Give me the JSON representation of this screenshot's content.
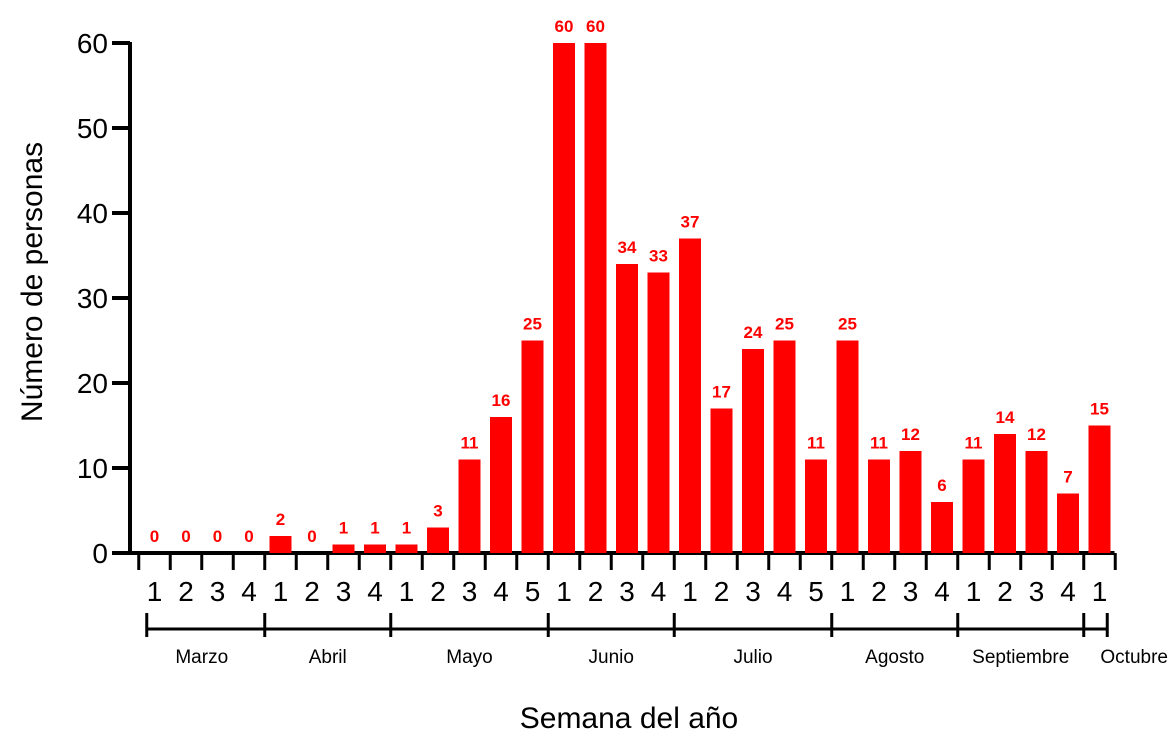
{
  "chart_data": {
    "type": "bar",
    "xlabel": "Semana del año",
    "ylabel": "Número de personas",
    "ylim": [
      0,
      60
    ],
    "yticks": [
      0,
      10,
      20,
      30,
      40,
      50,
      60
    ],
    "bar_color": "#ff0000",
    "label_color": "#ff0000",
    "axis_color": "#000000",
    "categories": [
      "1",
      "2",
      "3",
      "4",
      "1",
      "2",
      "3",
      "4",
      "1",
      "2",
      "3",
      "4",
      "5",
      "1",
      "2",
      "3",
      "4",
      "1",
      "2",
      "3",
      "4",
      "5",
      "1",
      "2",
      "3",
      "4",
      "1",
      "2",
      "3",
      "4",
      "1"
    ],
    "values": [
      0,
      0,
      0,
      0,
      2,
      0,
      1,
      1,
      1,
      3,
      11,
      16,
      25,
      60,
      60,
      34,
      33,
      37,
      17,
      24,
      25,
      11,
      25,
      11,
      12,
      6,
      11,
      14,
      12,
      7,
      15
    ],
    "groups": [
      {
        "name": "Marzo",
        "count": 4
      },
      {
        "name": "Abril",
        "count": 4
      },
      {
        "name": "Mayo",
        "count": 5
      },
      {
        "name": "Junio",
        "count": 4
      },
      {
        "name": "Julio",
        "count": 5
      },
      {
        "name": "Agosto",
        "count": 4
      },
      {
        "name": "Septiembre",
        "count": 4
      },
      {
        "name": "Octubre",
        "count": 1
      }
    ]
  }
}
